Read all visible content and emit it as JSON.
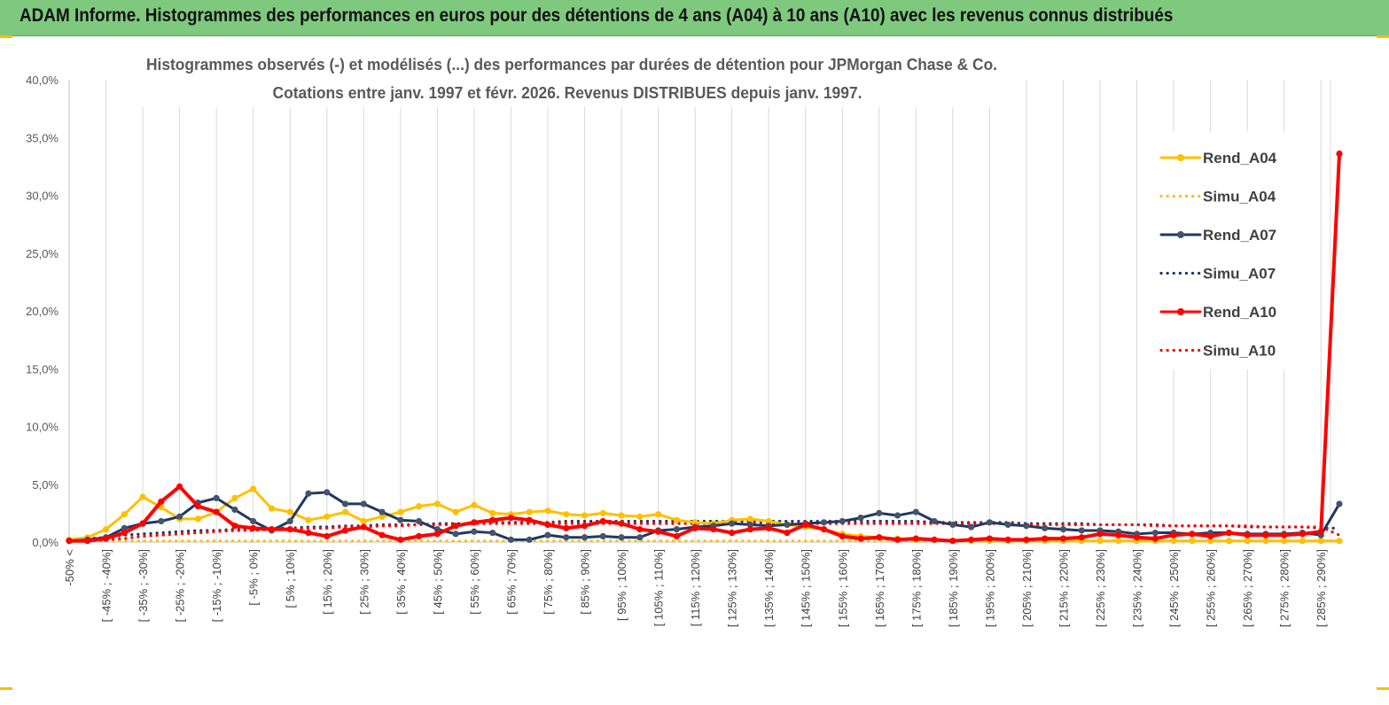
{
  "header": {
    "title": "ADAM Informe. Histogrammes des performances en euros pour des détentions de 4 ans (A04) à 10 ans (A10) avec les revenus connus distribués"
  },
  "colors": {
    "banner": "#7fc97f",
    "A04": "#ffc000",
    "A07": "#1f3864",
    "A10": "#ff0000",
    "grid": "#d9d9d9"
  },
  "chart_data": {
    "type": "line",
    "title": "Histogrammes observés (-) et modélisés (...) des performances par durées de détention pour JPMorgan Chase & Co.",
    "subtitle": "Cotations entre janv. 1997 et févr.  2026. Revenus DISTRIBUES depuis janv. 1997.",
    "xlabel": "",
    "ylabel": "",
    "ylim": [
      0,
      40
    ],
    "yticks": [
      "0,0%",
      "5,0%",
      "10,0%",
      "15,0%",
      "20,0%",
      "25,0%",
      "30,0%",
      "35,0%",
      "40,0%"
    ],
    "grid": "vertical",
    "legend_position": "right",
    "categories": [
      "-50% <",
      "[ -50% ; -45%]",
      "[ -45% ; -40%]",
      "[ -40% ; -35%]",
      "[ -35% ; -30%]",
      "[ -30% ; -25%]",
      "[ -25% ; -20%]",
      "[ -20% ; -15%]",
      "[ -15% ; -10%]",
      "[ -10% ; -5%]",
      "[ -5% ; 0%]",
      "[ 0% ; 5%]",
      "[ 5% ; 10%]",
      "[ 10% ; 15%]",
      "[ 15% ; 20%]",
      "[ 20% ; 25%]",
      "[ 25% ; 30%]",
      "[ 30% ; 35%]",
      "[ 35% ; 40%]",
      "[ 40% ; 45%]",
      "[ 45% ; 50%]",
      "[ 50% ; 55%]",
      "[ 55% ; 60%]",
      "[ 60% ; 65%]",
      "[ 65% ; 70%]",
      "[ 70% ; 75%]",
      "[ 75% ; 80%]",
      "[ 80% ; 85%]",
      "[ 85% ; 90%]",
      "[ 90% ; 95%]",
      "[ 95% ; 100%]",
      "[ 100% ; 105%]",
      "[ 105% ; 110%]",
      "[ 110% ; 115%]",
      "[ 115% ; 120%]",
      "[ 120% ; 125%]",
      "[ 125% ; 130%]",
      "[ 130% ; 135%]",
      "[ 135% ; 140%]",
      "[ 140% ; 145%]",
      "[ 145% ; 150%]",
      "[ 150% ; 155%]",
      "[ 155% ; 160%]",
      "[ 160% ; 165%]",
      "[ 165% ; 170%]",
      "[ 170% ; 175%]",
      "[ 175% ; 180%]",
      "[ 180% ; 185%]",
      "[ 185% ; 190%]",
      "[ 190% ; 195%]",
      "[ 195% ; 200%]",
      "[ 200% ; 205%]",
      "[ 205% ; 210%]",
      "[ 210% ; 215%]",
      "[ 215% ; 220%]",
      "[ 220% ; 225%]",
      "[ 225% ; 230%]",
      "[ 230% ; 235%]",
      "[ 235% ; 240%]",
      "[ 240% ; 245%]",
      "[ 245% ; 250%]",
      "[ 250% ; 255%]",
      "[ 255% ; 260%]",
      "[ 260% ; 265%]",
      "[ 265% ; 270%]",
      "[ 270% ; 275%]",
      "[ 275% ; 280%]",
      "[ 280% ; 285%]",
      "[ 285% ; 290%]",
      "[ 290% ; 295%]"
    ],
    "x_tick_labels": [
      "-50% <",
      "[ -45% ; -40%]",
      "[ -35% ; -30%]",
      "[ -25% ; -20%]",
      "[ -15% ; -10%]",
      "[ -5% ; 0%]",
      "[ 5% ; 10%]",
      "[ 15% ; 20%]",
      "[ 25% ; 30%]",
      "[ 35% ; 40%]",
      "[ 45% ; 50%]",
      "[ 55% ; 60%]",
      "[ 65% ; 70%]",
      "[ 75% ; 80%]",
      "[ 85% ; 90%]",
      "[ 95% ; 100%]",
      "[ 105% ; 110%]",
      "[ 115% ; 120%]",
      "[ 125% ; 130%]",
      "[ 135% ; 140%]",
      "[ 145% ; 150%]",
      "[ 155% ; 160%]",
      "[ 165% ; 170%]",
      "[ 175% ; 180%]",
      "[ 185% ; 190%]",
      "[ 195% ; 200%]",
      "[ 205% ; 210%]",
      "[ 215% ; 220%]",
      "[ 225% ; 230%]",
      "[ 235% ; 240%]",
      "[ 245% ; 250%]",
      "[ 255% ; 260%]",
      "[ 265% ; 270%]",
      "[ 275% ; 280%]",
      "[ 285% ; 290%]"
    ],
    "series": [
      {
        "name": "Rend_A04",
        "style": "solid",
        "markers": true,
        "color": "#ffc000",
        "values": [
          0.2,
          0.4,
          1.1,
          2.4,
          3.9,
          3.0,
          2.0,
          2.0,
          2.6,
          3.8,
          4.6,
          2.9,
          2.6,
          1.9,
          2.2,
          2.6,
          1.8,
          2.2,
          2.6,
          3.1,
          3.3,
          2.6,
          3.2,
          2.5,
          2.4,
          2.6,
          2.7,
          2.4,
          2.3,
          2.5,
          2.3,
          2.2,
          2.4,
          1.9,
          1.7,
          1.6,
          1.9,
          2.0,
          1.8,
          1.5,
          1.3,
          1.1,
          0.7,
          0.5,
          0.4,
          0.3,
          0.2,
          0.2,
          0.1,
          0.1,
          0.1,
          0.1,
          0.1,
          0.1,
          0.1,
          0.1,
          0.1,
          0.1,
          0.1,
          0.1,
          0.1,
          0.1,
          0.1,
          0.1,
          0.1,
          0.1,
          0.1,
          0.1,
          0.1,
          0.1
        ]
      },
      {
        "name": "Simu_A04",
        "style": "dotted",
        "markers": false,
        "color": "#ffc000",
        "values": [
          0.1,
          0.1,
          0.1,
          0.1,
          0.1,
          0.1,
          0.1,
          0.1,
          0.1,
          0.1,
          0.1,
          0.1,
          0.1,
          0.1,
          0.1,
          0.1,
          0.1,
          0.1,
          0.1,
          0.1,
          0.1,
          0.1,
          0.1,
          0.1,
          0.1,
          0.1,
          0.1,
          0.1,
          0.1,
          0.1,
          0.1,
          0.1,
          0.1,
          0.1,
          0.1,
          0.1,
          0.1,
          0.1,
          0.1,
          0.1,
          0.1,
          0.1,
          0.1,
          0.1,
          0.1,
          0.1,
          0.1,
          0.1,
          0.1,
          0.1,
          0.1,
          0.1,
          0.1,
          0.1,
          0.1,
          0.1,
          0.1,
          0.1,
          0.1,
          0.1,
          0.1,
          0.1,
          0.1,
          0.1,
          0.1,
          0.1,
          0.1,
          0.1,
          0.1,
          0.1
        ]
      },
      {
        "name": "Rend_A07",
        "style": "solid",
        "markers": true,
        "color": "#1f3864",
        "values": [
          0.1,
          0.2,
          0.4,
          1.2,
          1.6,
          1.8,
          2.2,
          3.4,
          3.8,
          2.8,
          1.8,
          1.0,
          1.8,
          4.2,
          4.3,
          3.3,
          3.3,
          2.6,
          1.9,
          1.8,
          1.1,
          0.7,
          0.9,
          0.8,
          0.2,
          0.2,
          0.6,
          0.4,
          0.4,
          0.5,
          0.4,
          0.4,
          1.0,
          1.1,
          1.3,
          1.4,
          1.6,
          1.5,
          1.4,
          1.5,
          1.6,
          1.7,
          1.8,
          2.1,
          2.5,
          2.3,
          2.6,
          1.8,
          1.5,
          1.3,
          1.7,
          1.5,
          1.4,
          1.2,
          1.1,
          1.0,
          1.0,
          0.9,
          0.7,
          0.8,
          0.8,
          0.7,
          0.8,
          0.8,
          0.7,
          0.7,
          0.7,
          0.8,
          0.6,
          3.3
        ]
      },
      {
        "name": "Simu_A07",
        "style": "dotted",
        "markers": false,
        "color": "#1f3864",
        "values": [
          0.2,
          0.3,
          0.4,
          0.6,
          0.7,
          0.8,
          0.9,
          1.0,
          1.0,
          1.1,
          1.1,
          1.2,
          1.2,
          1.3,
          1.3,
          1.4,
          1.4,
          1.5,
          1.5,
          1.5,
          1.6,
          1.6,
          1.6,
          1.7,
          1.7,
          1.7,
          1.7,
          1.8,
          1.8,
          1.8,
          1.8,
          1.8,
          1.8,
          1.8,
          1.8,
          1.8,
          1.8,
          1.8,
          1.8,
          1.8,
          1.8,
          1.8,
          1.8,
          1.8,
          1.8,
          1.8,
          1.8,
          1.7,
          1.7,
          1.7,
          1.7,
          1.7,
          1.6,
          1.6,
          1.6,
          1.6,
          1.5,
          1.5,
          1.5,
          1.5,
          1.4,
          1.4,
          1.4,
          1.4,
          1.3,
          1.3,
          1.3,
          1.3,
          1.2,
          1.2
        ]
      },
      {
        "name": "Rend_A10",
        "style": "solid",
        "markers": true,
        "color": "#ff0000",
        "values": [
          0.1,
          0.1,
          0.3,
          0.8,
          1.6,
          3.5,
          4.8,
          3.1,
          2.6,
          1.4,
          1.2,
          1.1,
          1.1,
          0.8,
          0.5,
          1.0,
          1.3,
          0.6,
          0.2,
          0.5,
          0.7,
          1.4,
          1.7,
          1.9,
          2.1,
          1.9,
          1.5,
          1.2,
          1.4,
          1.8,
          1.6,
          1.1,
          0.9,
          0.5,
          1.2,
          1.1,
          0.8,
          1.1,
          1.2,
          0.8,
          1.5,
          1.1,
          0.5,
          0.3,
          0.4,
          0.2,
          0.3,
          0.2,
          0.1,
          0.2,
          0.3,
          0.2,
          0.2,
          0.3,
          0.3,
          0.4,
          0.7,
          0.6,
          0.4,
          0.3,
          0.6,
          0.7,
          0.5,
          0.8,
          0.6,
          0.6,
          0.6,
          0.7,
          0.9,
          33.6
        ]
      },
      {
        "name": "Simu_A10",
        "style": "dotted",
        "markers": false,
        "color": "#ff0000",
        "values": [
          0.1,
          0.1,
          0.2,
          0.3,
          0.5,
          0.6,
          0.7,
          0.8,
          0.9,
          1.0,
          1.0,
          1.1,
          1.1,
          1.2,
          1.2,
          1.3,
          1.3,
          1.4,
          1.4,
          1.5,
          1.5,
          1.5,
          1.6,
          1.6,
          1.6,
          1.6,
          1.6,
          1.6,
          1.6,
          1.6,
          1.6,
          1.6,
          1.6,
          1.6,
          1.6,
          1.6,
          1.6,
          1.6,
          1.6,
          1.6,
          1.6,
          1.6,
          1.6,
          1.6,
          1.6,
          1.6,
          1.6,
          1.6,
          1.6,
          1.6,
          1.6,
          1.6,
          1.5,
          1.5,
          1.5,
          1.5,
          1.5,
          1.5,
          1.5,
          1.4,
          1.4,
          1.4,
          1.4,
          1.4,
          1.4,
          1.3,
          1.3,
          1.3,
          1.3,
          0.6
        ]
      }
    ]
  }
}
